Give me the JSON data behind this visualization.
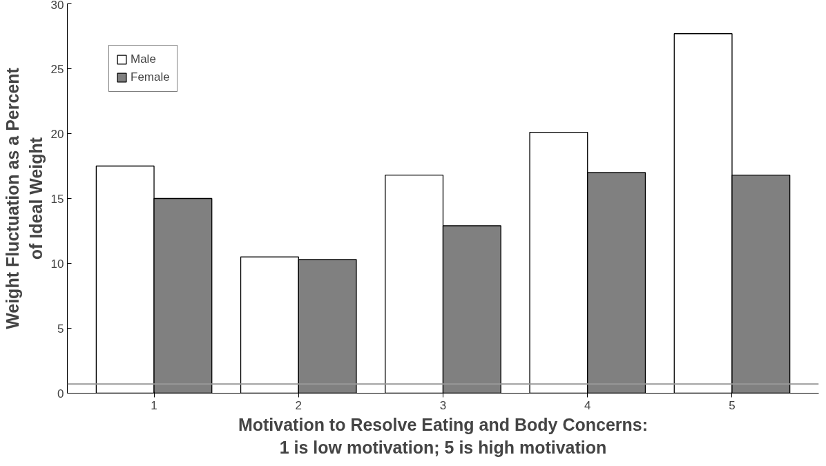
{
  "chart_data": {
    "type": "bar",
    "xlabel": "Motivation to Resolve Eating and Body Concerns:\n1 is low motivation; 5 is high motivation",
    "ylabel": "Weight Fluctuation as a Percent\nof Ideal Weight",
    "categories": [
      "1",
      "2",
      "3",
      "4",
      "5"
    ],
    "series": [
      {
        "name": "Male",
        "color": "#ffffff",
        "values": [
          17.5,
          10.5,
          16.8,
          20.1,
          27.7
        ]
      },
      {
        "name": "Female",
        "color": "#808080",
        "values": [
          15.0,
          10.3,
          12.9,
          17.0,
          16.8
        ]
      }
    ],
    "ylim": [
      0,
      30
    ],
    "yticks": [
      0,
      5,
      10,
      15,
      20,
      25,
      30
    ],
    "grid": false,
    "legend": "top left",
    "ref_lines": [
      {
        "axis": "y",
        "value": 0.7,
        "color": "#999999"
      }
    ]
  }
}
